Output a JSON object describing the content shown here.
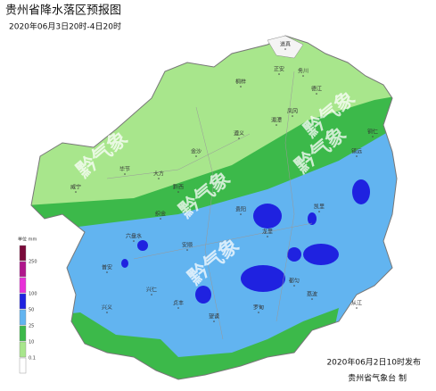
{
  "header": {
    "title": "贵州省降水落区预报图",
    "subtitle": "2020年06月3日20时-4日20时"
  },
  "legend": {
    "unit": "单位 mm",
    "labels": [
      "250",
      "100",
      "50",
      "25",
      "10",
      "0.1"
    ]
  },
  "watermarks": [
    "黔气象",
    "黔气象",
    "黔气象",
    "黔气象",
    "黔气象"
  ],
  "cities": [
    "道真",
    "正安",
    "务川",
    "桐梓",
    "遵义",
    "湄潭",
    "凤冈",
    "德江",
    "毕节",
    "大方",
    "金沙",
    "织金",
    "黔西",
    "威宁",
    "贵阳",
    "龙里",
    "凯里",
    "镇远",
    "铜仁",
    "安顺",
    "都匀",
    "六盘水",
    "普安",
    "兴仁",
    "兴义",
    "贞丰",
    "望谟",
    "罗甸",
    "荔波",
    "从江"
  ],
  "footer": {
    "issued": "2020年06月2日10时发布",
    "agency": "贵州省气象台 制"
  }
}
